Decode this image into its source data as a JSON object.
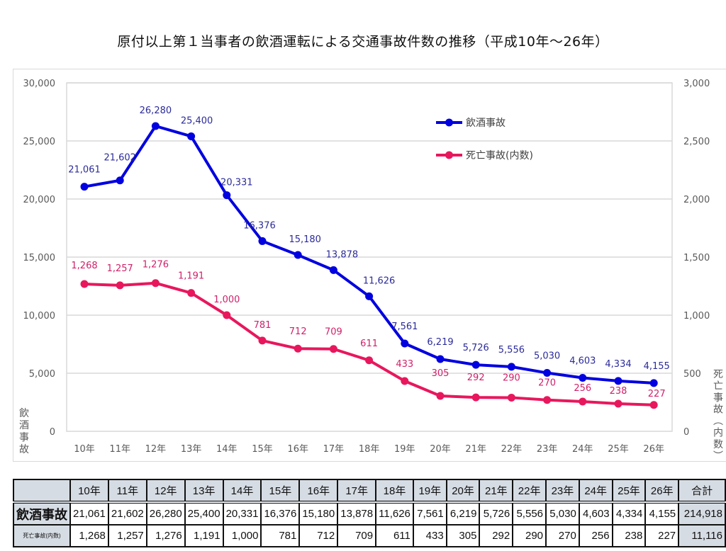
{
  "title": "原付以上第１当事者の飲酒運転による交通事故件数の推移（平成10年～26年）",
  "chart_data": {
    "type": "line",
    "title": "原付以上第１当事者の飲酒運転による交通事故件数の推移（平成10年～26年）",
    "categories": [
      "10年",
      "11年",
      "12年",
      "13年",
      "14年",
      "15年",
      "16年",
      "17年",
      "18年",
      "19年",
      "20年",
      "21年",
      "22年",
      "23年",
      "24年",
      "25年",
      "26年"
    ],
    "series": [
      {
        "name": "飲酒事故",
        "axis": "left",
        "color": "#0000e0",
        "label_color": "#2b2b9a",
        "values": [
          21061,
          21602,
          26280,
          25400,
          20331,
          16376,
          15180,
          13878,
          11626,
          7561,
          6219,
          5726,
          5556,
          5030,
          4603,
          4334,
          4155
        ],
        "labels": [
          "21,061",
          "21,602",
          "26,280",
          "25,400",
          "20,331",
          "16,376",
          "15,180",
          "13,878",
          "11,626",
          "7,561",
          "6,219",
          "5,726",
          "5,556",
          "5,030",
          "4,603",
          "4,334",
          "4,155"
        ]
      },
      {
        "name": "死亡事故(内数)",
        "axis": "right",
        "color": "#e8175d",
        "label_color": "#d0206a",
        "values": [
          1268,
          1257,
          1276,
          1191,
          1000,
          781,
          712,
          709,
          611,
          433,
          305,
          292,
          290,
          270,
          256,
          238,
          227
        ],
        "labels": [
          "1,268",
          "1,257",
          "1,276",
          "1,191",
          "1,000",
          "781",
          "712",
          "709",
          "611",
          "433",
          "305",
          "292",
          "290",
          "270",
          "256",
          "238",
          "227"
        ]
      }
    ],
    "y_left": {
      "label": "飲酒事故",
      "range": [
        0,
        30000
      ],
      "ticks": [
        "0",
        "5,000",
        "10,000",
        "15,000",
        "20,000",
        "25,000",
        "30,000"
      ],
      "tick_values": [
        0,
        5000,
        10000,
        15000,
        20000,
        25000,
        30000
      ]
    },
    "y_right": {
      "label": "死亡事故(内数)",
      "range": [
        0,
        3000
      ],
      "ticks": [
        "0",
        "500",
        "1,000",
        "1,500",
        "2,000",
        "2,500",
        "3,000"
      ],
      "tick_values": [
        0,
        500,
        1000,
        1500,
        2000,
        2500,
        3000
      ]
    },
    "grid": true,
    "legend": {
      "position": "top-right",
      "entries": [
        "飲酒事故",
        "死亡事故(内数)"
      ]
    }
  },
  "table": {
    "corner": "",
    "headers": [
      "10年",
      "11年",
      "12年",
      "13年",
      "14年",
      "15年",
      "16年",
      "17年",
      "18年",
      "19年",
      "20年",
      "21年",
      "22年",
      "23年",
      "24年",
      "25年",
      "26年"
    ],
    "total_header": "合計",
    "rows": [
      {
        "label": "飲酒事故",
        "values": [
          "21,061",
          "21,602",
          "26,280",
          "25,400",
          "20,331",
          "16,376",
          "15,180",
          "13,878",
          "11,626",
          "7,561",
          "6,219",
          "5,726",
          "5,556",
          "5,030",
          "4,603",
          "4,334",
          "4,155"
        ],
        "total": "214,918"
      },
      {
        "label": "死亡事故(内数)",
        "values": [
          "1,268",
          "1,257",
          "1,276",
          "1,191",
          "1,000",
          "781",
          "712",
          "709",
          "611",
          "433",
          "305",
          "292",
          "290",
          "270",
          "256",
          "238",
          "227"
        ],
        "total": "11,116"
      }
    ]
  }
}
